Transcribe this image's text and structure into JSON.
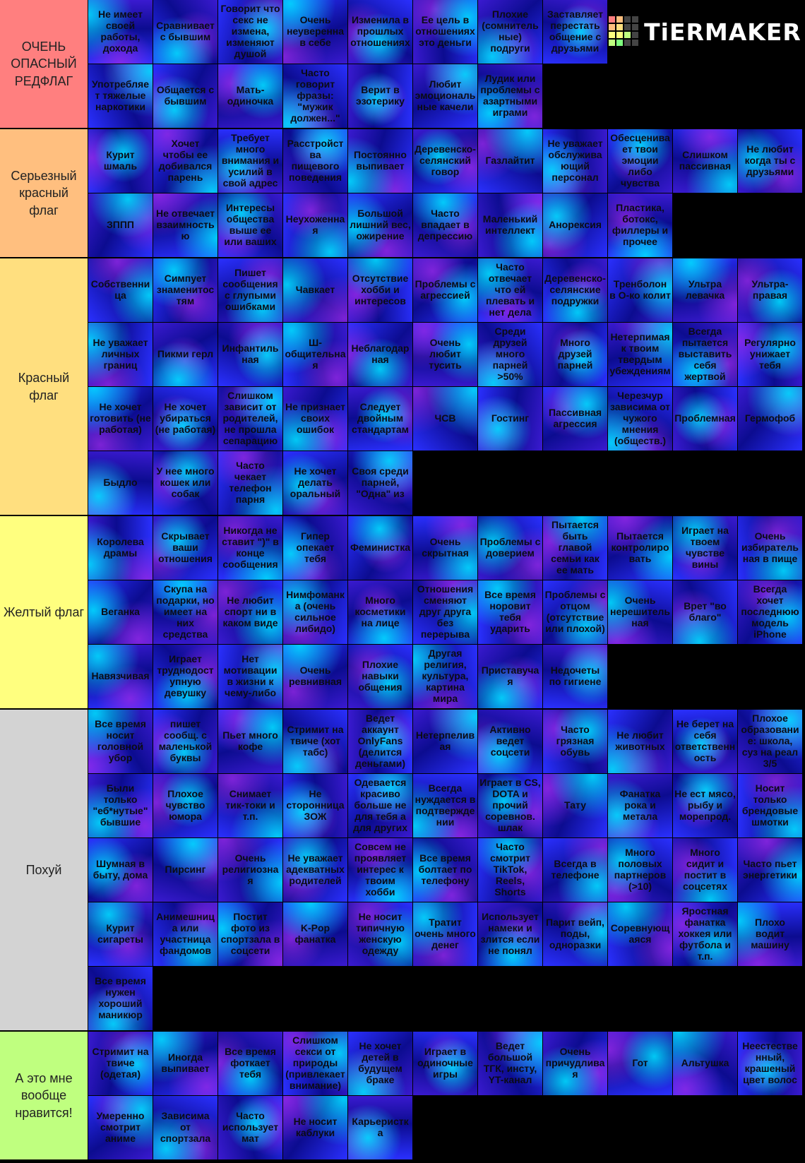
{
  "logo": "TiERMAKER",
  "tiers": [
    {
      "label": "ОЧЕНЬ ОПАСНЫЙ РЕДФЛАГ",
      "color": "#ff7f7f",
      "items": [
        "Не имеет своей работы, дохода",
        "Сравнивает с бывшим",
        "Говорит что секс не измена, изменяют душой",
        "Очень неуверенна в себе",
        "Изменила в прошлых отношениях",
        "Ее цель в отношениях это деньги",
        "Плохие (сомнительные) подруги",
        "Заставляет перестать общение с друзьями",
        "Употребляет тяжелые наркотики",
        "Общается с бывшим",
        "Мать-одиночка",
        "Часто говорит фразы: \"мужик должен...\"",
        "Верит в эзотерику",
        "Любит эмоциональные качели",
        "Лудик или проблемы с азартными играми"
      ]
    },
    {
      "label": "Серьезный красный флаг",
      "color": "#ffbf7f",
      "items": [
        "Курит шмаль",
        "Хочет чтобы ее добивался парень",
        "Требует много внимания и усилий в свой адрес",
        "Расстройства пищевого поведения",
        "Постоянно выпивает",
        "Деревенско-селянский говор",
        "Газлайтит",
        "Не уважает обслуживающий персонал",
        "Обесценивает твои эмоции либо чувства",
        "Слишком пассивная",
        "Не любит когда ты с друзьями",
        "ЗППП",
        "Не отвечает взаимностью",
        "Интересы общества выше ее или ваших",
        "Неухоженная",
        "Большой лишний вес, ожирение",
        "Часто впадает в депрессию",
        "Маленький интеллект",
        "Анорексия",
        "Пластика, ботокс, филлеры и прочее"
      ]
    },
    {
      "label": "Красный флаг",
      "color": "#ffdf7f",
      "items": [
        "Собственница",
        "Симпует знаменитостям",
        "Пишет сообщения с глупыми ошибками",
        "Чавкает",
        "Отсутствие хобби и интересов",
        "Проблемы с агрессией",
        "Часто отвечает что ей плевать и нет дела",
        "Деревенско-селянские подружки",
        "Тренболон в О-ко колит",
        "Ультра левачка",
        "Ультра-правая",
        "Не уважает личных границ",
        "Пикми герл",
        "Инфантильная",
        "Ш-общительная",
        "Неблагодарная",
        "Очень любит тусить",
        "Среди друзей много парней >50%",
        "Много друзей парней",
        "Нетерпимая к твоим твердым убеждениям",
        "Всегда пытается выставить себя жертвой",
        "Регулярно унижает тебя",
        "Не хочет готовить (не работая)",
        "Не хочет убираться (не работая)",
        "Слишком зависит от родителей, не прошла сепарацию",
        "Не признает своих ошибок",
        "Следует двойным стандартам",
        "ЧСВ",
        "Гостинг",
        "Пассивная агрессия",
        "Черезчур зависима от чужого мнения (обществ.)",
        "Проблемная",
        "Гермофоб",
        "Быдло",
        "У нее много кошек или собак",
        "Часто чекает телефон парня",
        "Не хочет делать оральный",
        "Своя среди парней, \"Одна\" из"
      ]
    },
    {
      "label": "Желтый флаг",
      "color": "#ffff7f",
      "items": [
        "Королева драмы",
        "Скрывает ваши отношения",
        "Никогда не ставит \")\" в конце сообщения",
        "Гипер опекает тебя",
        "Феминистка",
        "Очень скрытная",
        "Проблемы с доверием",
        "Пытается быть главой семьи как ее мать",
        "Пытается контролировать",
        "Играет на твоем чувстве вины",
        "Очень избирательная в пище",
        "Веганка",
        "Скупа на подарки, но имеет на них средства",
        "Не любит спорт ни в каком виде",
        "Нимфоманка (очень сильное либидо)",
        "Много косметики на лице",
        "Отношения сменяют друг друга без перерыва",
        "Все время норовит тебя ударить",
        "Проблемы с отцом (отсутствие или плохой)",
        "Очень нерешительная",
        "Врет \"во благо\"",
        "Всегда хочет последнюю модель iPhone",
        "Навязчивая",
        "Играет труднодоступную девушку",
        "Нет мотивации в жизни к чему-либо",
        "Очень ревнивная",
        "Плохие навыки общения",
        "Другая религия, культура, картина мира",
        "Приставучая",
        "Недочеты по гигиене"
      ]
    },
    {
      "label": "Похуй",
      "color": "#d3d3d3",
      "items": [
        "Все время носит головной убор",
        "пишет сообщ. с маленькой буквы",
        "Пьет много кофе",
        "Стримит на твиче (хот табс)",
        "Ведет аккаунт OnlyFans (делится деньгами)",
        "Нетерпеливая",
        "Активно ведет соцсети",
        "Часто грязная обувь",
        "Не любит животных",
        "Не берет на себя ответственность",
        "Плохое образование: школа, суз на реал 3/5",
        "Были только \"еб*нутые\" бывшие",
        "Плохое чувство юмора",
        "Снимает тик-токи и т.п.",
        "Не сторонница ЗОЖ",
        "Одевается красиво больше не для тебя а для других",
        "Всегда нуждается в подтверждении",
        "Играет в CS, DOTA и прочий соревнов. шлак",
        "Тату",
        "Фанатка рока и метала",
        "Не ест мясо, рыбу и морепрод.",
        "Носит только брендовые шмотки",
        "Шумная в быту, дома",
        "Пирсинг",
        "Очень религиозная",
        "Не уважает адекватных родителей",
        "Совсем не проявляет интерес к твоим хобби",
        "Все время болтает по телефону",
        "Часто смотрит TikTok, Reels, Shorts",
        "Всегда в телефоне",
        "Много половых партнеров (>10)",
        "Много сидит и постит в соцсетях",
        "Часто пьет энергетики",
        "Курит сигареты",
        "Анимешница или участница фандомов",
        "Постит фото из спортзала в соцсети",
        "K-Pop фанатка",
        "Не носит типичную женскую одежду",
        "Тратит очень много денег",
        "Использует намеки и злится если не понял",
        "Парит вейп, поды, одноразки",
        "Соревнующаяся",
        "Яростная фанатка хоккея или футбола и т.п.",
        "Плохо водит машину",
        "Все время нужен хороший маникюр"
      ]
    },
    {
      "label": "А это мне вообще нравится!",
      "color": "#bfff7f",
      "items": [
        "Стримит на твиче (одетая)",
        "Иногда выпивает",
        "Все время фоткает тебя",
        "Слишком секси от природы (привлекает внимание)",
        "Не хочет детей в будущем браке",
        "Играет в одиночные игры",
        "Ведет большой ТГК, инсту, YT-канал",
        "Очень причудливая",
        "Гот",
        "Альтушка",
        "Неестественный, крашеный цвет волос",
        "Умеренно смотрит аниме",
        "Зависима от спортзала",
        "Часто использует мат",
        "Не носит каблуки",
        "Карьеристка"
      ]
    }
  ]
}
